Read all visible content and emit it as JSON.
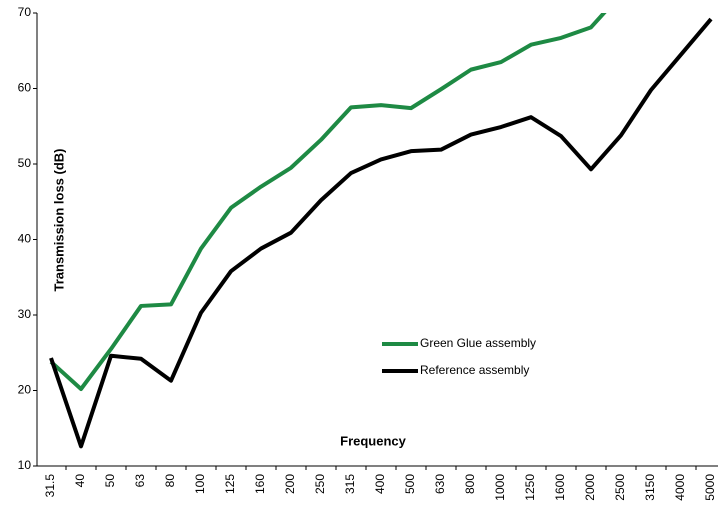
{
  "chart_data": {
    "type": "line",
    "y_label": "Transmission loss (dB)",
    "x_label": "Frequency",
    "categories": [
      "31.5",
      "40",
      "50",
      "63",
      "80",
      "100",
      "125",
      "160",
      "200",
      "250",
      "315",
      "400",
      "500",
      "630",
      "800",
      "1000",
      "1250",
      "1600",
      "2000",
      "2500",
      "3150",
      "4000",
      "5000"
    ],
    "series": [
      {
        "name": "Green Glue assembly",
        "color": "#1e8a44",
        "values": [
          23.8,
          20.2,
          25.5,
          31.2,
          31.4,
          38.8,
          44.2,
          47.0,
          49.5,
          53.2,
          57.5,
          57.8,
          57.4,
          59.9,
          62.5,
          63.5,
          65.8,
          66.7,
          68.1,
          72.5,
          null,
          null,
          null
        ]
      },
      {
        "name": "Reference assembly",
        "color": "#000000",
        "values": [
          24.3,
          12.6,
          24.6,
          24.2,
          21.3,
          30.3,
          35.8,
          38.8,
          40.9,
          45.2,
          48.8,
          50.6,
          51.7,
          51.9,
          53.9,
          54.9,
          56.2,
          53.7,
          49.3,
          53.8,
          59.8,
          64.5,
          69.2
        ]
      }
    ],
    "ylim": [
      10,
      70
    ],
    "yticks": [
      10,
      20,
      30,
      40,
      50,
      60,
      70
    ],
    "grid": false
  }
}
